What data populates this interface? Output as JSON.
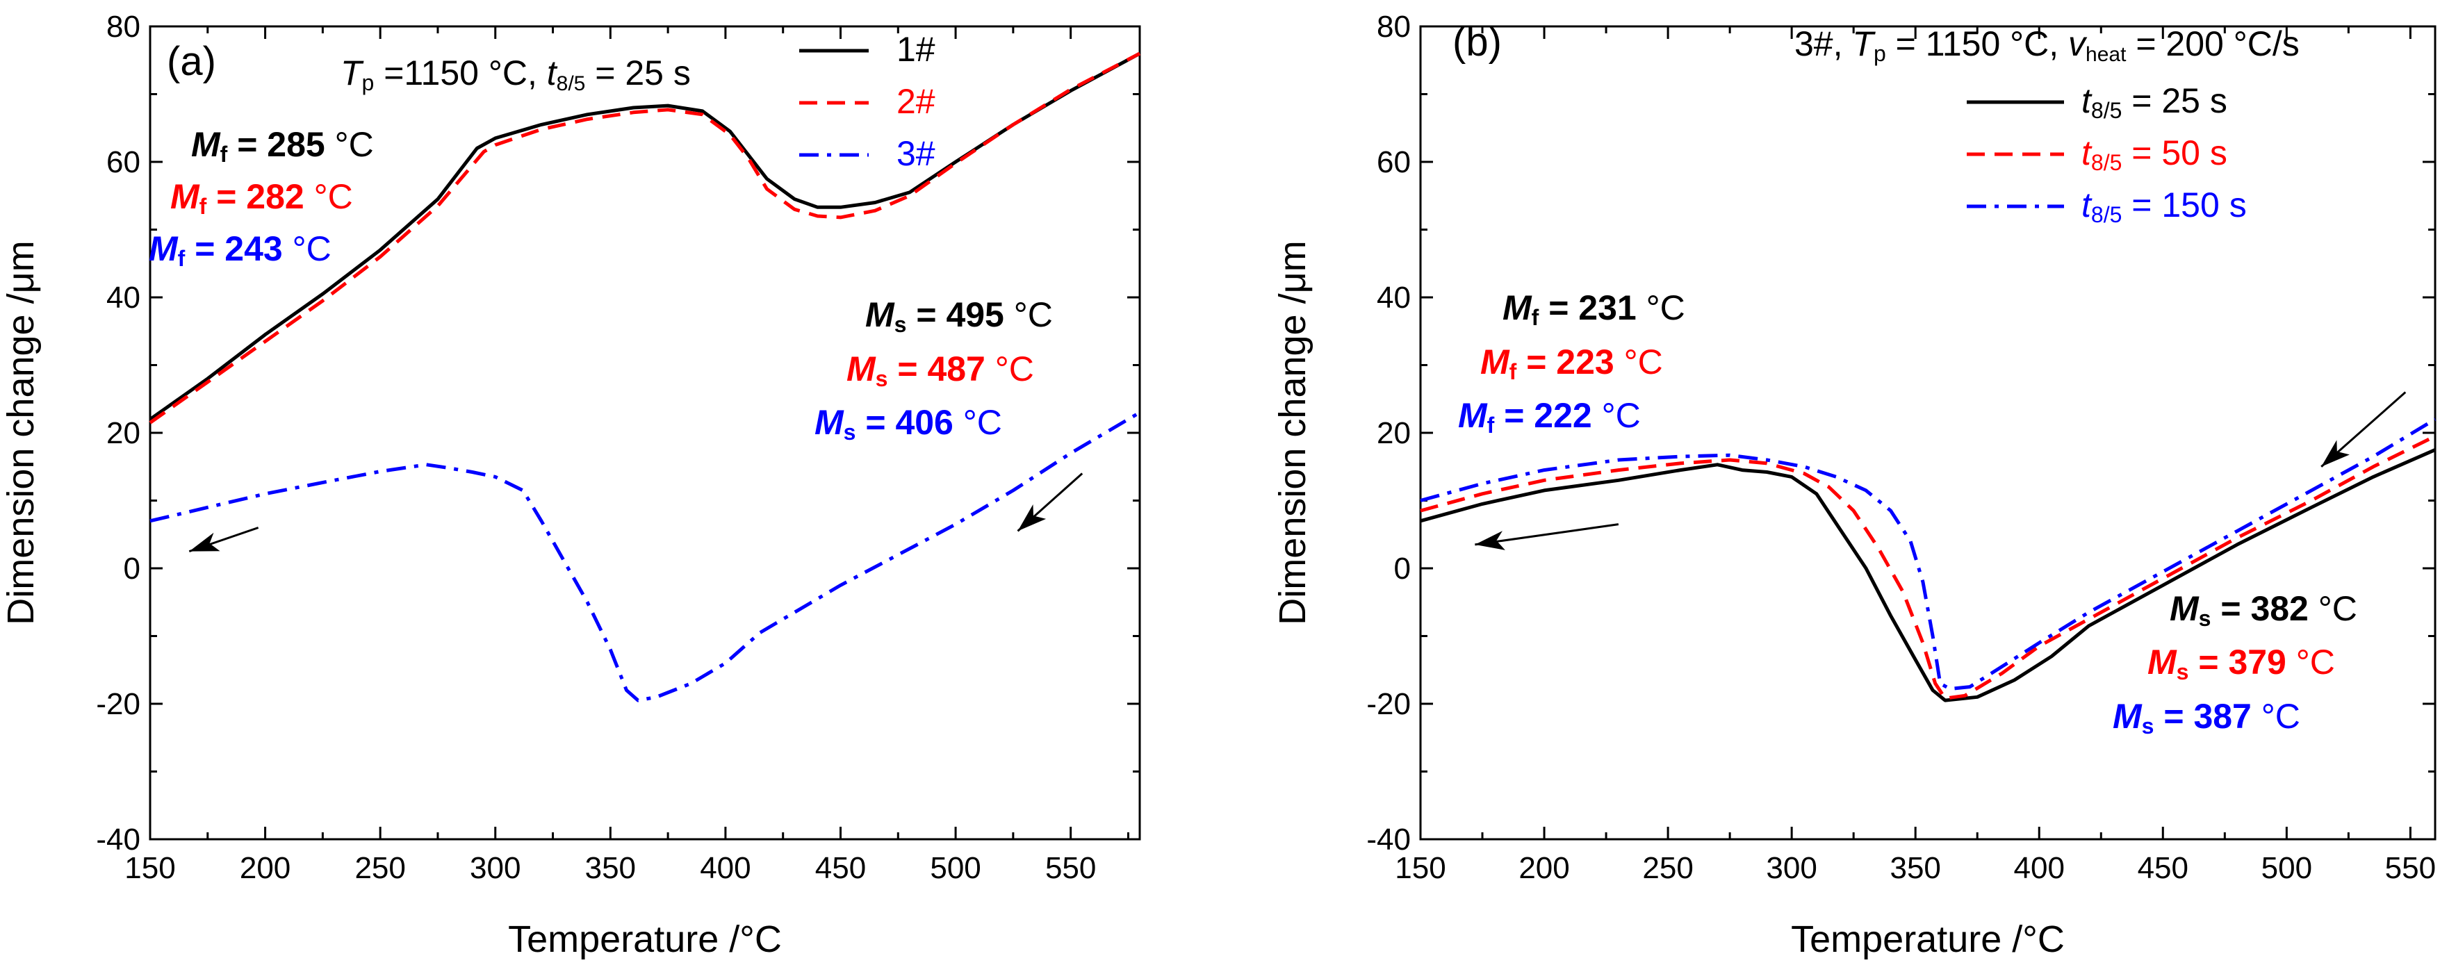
{
  "chart_data": [
    {
      "type": "line",
      "panel_label": "(a)",
      "xlabel": "Temperature /°C",
      "ylabel": "Dimension change /μm",
      "xlim": [
        150,
        580
      ],
      "ylim": [
        -40,
        80
      ],
      "xticks": [
        150,
        200,
        250,
        300,
        350,
        400,
        450,
        500,
        550
      ],
      "yticks": [
        -40,
        -20,
        0,
        20,
        40,
        60,
        80
      ],
      "grid": false,
      "legend_position": "top-right",
      "condition_text": {
        "t_symbol": "T",
        "t_sub": "p",
        "t_value": " =1150 °C, ",
        "t85_symbol": "t",
        "t85_sub": "8/5",
        "t85_value": " = 25 s"
      },
      "series": [
        {
          "name": "1#",
          "color": "#000000",
          "dash": "solid",
          "points": [
            [
              150,
              22
            ],
            [
              175,
              28
            ],
            [
              200,
              34.5
            ],
            [
              225,
              40.5
            ],
            [
              250,
              47
            ],
            [
              275,
              54.5
            ],
            [
              292,
              62
            ],
            [
              300,
              63.5
            ],
            [
              320,
              65.5
            ],
            [
              340,
              67
            ],
            [
              360,
              68
            ],
            [
              375,
              68.3
            ],
            [
              390,
              67.5
            ],
            [
              402,
              64.5
            ],
            [
              410,
              61
            ],
            [
              418,
              57.5
            ],
            [
              430,
              54.5
            ],
            [
              440,
              53.3
            ],
            [
              450,
              53.3
            ],
            [
              465,
              54
            ],
            [
              480,
              55.5
            ],
            [
              500,
              60
            ],
            [
              525,
              65.5
            ],
            [
              550,
              70.5
            ],
            [
              580,
              76
            ]
          ]
        },
        {
          "name": "2#",
          "color": "#ff0000",
          "dash": "dashed",
          "points": [
            [
              150,
              21.5
            ],
            [
              175,
              27.5
            ],
            [
              200,
              33.5
            ],
            [
              225,
              39.5
            ],
            [
              250,
              46
            ],
            [
              275,
              53.5
            ],
            [
              295,
              61.5
            ],
            [
              300,
              62.5
            ],
            [
              320,
              64.8
            ],
            [
              340,
              66.3
            ],
            [
              360,
              67.3
            ],
            [
              375,
              67.7
            ],
            [
              390,
              67
            ],
            [
              402,
              64
            ],
            [
              410,
              60.5
            ],
            [
              418,
              56
            ],
            [
              430,
              53
            ],
            [
              440,
              52
            ],
            [
              450,
              51.8
            ],
            [
              465,
              52.8
            ],
            [
              480,
              55
            ],
            [
              500,
              59.8
            ],
            [
              525,
              65.5
            ],
            [
              550,
              70.7
            ],
            [
              580,
              76
            ]
          ]
        },
        {
          "name": "3#",
          "color": "#0000ff",
          "dash": "dashdot",
          "points": [
            [
              150,
              7
            ],
            [
              175,
              9
            ],
            [
              200,
              11
            ],
            [
              230,
              13
            ],
            [
              250,
              14.3
            ],
            [
              270,
              15.3
            ],
            [
              280,
              14.8
            ],
            [
              290,
              14.2
            ],
            [
              300,
              13.5
            ],
            [
              312,
              11.5
            ],
            [
              320,
              7
            ],
            [
              330,
              1
            ],
            [
              340,
              -5
            ],
            [
              350,
              -12
            ],
            [
              357,
              -18
            ],
            [
              362,
              -19.5
            ],
            [
              370,
              -19
            ],
            [
              385,
              -17
            ],
            [
              400,
              -14
            ],
            [
              415,
              -9.5
            ],
            [
              425,
              -7.5
            ],
            [
              450,
              -2.5
            ],
            [
              475,
              2
            ],
            [
              500,
              6.5
            ],
            [
              525,
              11.5
            ],
            [
              550,
              17
            ],
            [
              580,
              23
            ]
          ]
        }
      ],
      "annotations": [
        {
          "symbol": "M",
          "sub": "f",
          "value": "285",
          "unit": " °C",
          "color": "#000000"
        },
        {
          "symbol": "M",
          "sub": "f",
          "value": "282",
          "unit": " °C",
          "color": "#ff0000"
        },
        {
          "symbol": "M",
          "sub": "f",
          "value": "243",
          "unit": " °C",
          "color": "#0000ff"
        },
        {
          "symbol": "M",
          "sub": "s",
          "value": "495",
          "unit": " °C",
          "color": "#000000"
        },
        {
          "symbol": "M",
          "sub": "s",
          "value": "487",
          "unit": " °C",
          "color": "#ff0000"
        },
        {
          "symbol": "M",
          "sub": "s",
          "value": "406",
          "unit": " °C",
          "color": "#0000ff"
        }
      ],
      "arrows": [
        {
          "from": [
            197,
            6
          ],
          "to": [
            167,
            2.5
          ]
        },
        {
          "from": [
            555,
            14
          ],
          "to": [
            527,
            5.5
          ]
        }
      ]
    },
    {
      "type": "line",
      "panel_label": "(b)",
      "xlabel": "Temperature /°C",
      "ylabel": "Dimension change /μm",
      "xlim": [
        150,
        560
      ],
      "ylim": [
        -40,
        80
      ],
      "xticks": [
        150,
        200,
        250,
        300,
        350,
        400,
        450,
        500,
        550
      ],
      "yticks": [
        -40,
        -20,
        0,
        20,
        40,
        60,
        80
      ],
      "grid": false,
      "legend_position": "top-right",
      "condition_text": {
        "prefix": "3#, ",
        "t_symbol": "T",
        "t_sub": "p",
        "t_value": " = 1150 °C, ",
        "v_symbol": "v",
        "v_sub": "heat",
        "v_value": " = 200 °C/s"
      },
      "series": [
        {
          "name": "t8/5 = 25 s",
          "name_symbol": "t",
          "name_sub": "8/5",
          "name_value": " = 25 s",
          "color": "#000000",
          "dash": "solid",
          "points": [
            [
              150,
              7
            ],
            [
              175,
              9.5
            ],
            [
              200,
              11.5
            ],
            [
              230,
              13
            ],
            [
              255,
              14.5
            ],
            [
              270,
              15.3
            ],
            [
              280,
              14.5
            ],
            [
              290,
              14.2
            ],
            [
              300,
              13.5
            ],
            [
              310,
              11
            ],
            [
              320,
              5.5
            ],
            [
              330,
              0
            ],
            [
              340,
              -7
            ],
            [
              350,
              -13.5
            ],
            [
              357,
              -18
            ],
            [
              362,
              -19.5
            ],
            [
              375,
              -19
            ],
            [
              390,
              -16.5
            ],
            [
              405,
              -13
            ],
            [
              420,
              -8.5
            ],
            [
              450,
              -2.5
            ],
            [
              480,
              3.5
            ],
            [
              510,
              9
            ],
            [
              535,
              13.5
            ],
            [
              560,
              17.5
            ]
          ]
        },
        {
          "name": "t8/5 = 50 s",
          "name_symbol": "t",
          "name_sub": "8/5",
          "name_value": " = 50 s",
          "color": "#ff0000",
          "dash": "dashed",
          "points": [
            [
              150,
              8.5
            ],
            [
              175,
              11
            ],
            [
              200,
              13
            ],
            [
              230,
              14.5
            ],
            [
              255,
              15.5
            ],
            [
              275,
              16
            ],
            [
              290,
              15.5
            ],
            [
              305,
              14
            ],
            [
              315,
              12
            ],
            [
              325,
              8.5
            ],
            [
              335,
              3
            ],
            [
              345,
              -3.5
            ],
            [
              353,
              -11
            ],
            [
              358,
              -17
            ],
            [
              362,
              -19.2
            ],
            [
              370,
              -18.8
            ],
            [
              385,
              -15.5
            ],
            [
              400,
              -11.5
            ],
            [
              420,
              -7.5
            ],
            [
              450,
              -1.5
            ],
            [
              480,
              4.5
            ],
            [
              510,
              10
            ],
            [
              535,
              15
            ],
            [
              560,
              19.5
            ]
          ]
        },
        {
          "name": "t8/5 = 150 s",
          "name_symbol": "t",
          "name_sub": "8/5",
          "name_value": " = 150 s",
          "color": "#0000ff",
          "dash": "dashdot",
          "points": [
            [
              150,
              10
            ],
            [
              175,
              12.5
            ],
            [
              200,
              14.5
            ],
            [
              230,
              16
            ],
            [
              255,
              16.5
            ],
            [
              275,
              16.7
            ],
            [
              290,
              16
            ],
            [
              305,
              15
            ],
            [
              318,
              13.5
            ],
            [
              330,
              11.5
            ],
            [
              340,
              8.5
            ],
            [
              348,
              4
            ],
            [
              353,
              -2
            ],
            [
              357,
              -10
            ],
            [
              360,
              -17
            ],
            [
              364,
              -17.8
            ],
            [
              372,
              -17.5
            ],
            [
              385,
              -14.5
            ],
            [
              400,
              -11
            ],
            [
              420,
              -6.5
            ],
            [
              450,
              -0.5
            ],
            [
              480,
              5.5
            ],
            [
              510,
              11.5
            ],
            [
              535,
              16.5
            ],
            [
              560,
              22
            ]
          ]
        }
      ],
      "annotations": [
        {
          "symbol": "M",
          "sub": "f",
          "value": "231",
          "unit": " °C",
          "color": "#000000"
        },
        {
          "symbol": "M",
          "sub": "f",
          "value": "223",
          "unit": " °C",
          "color": "#ff0000"
        },
        {
          "symbol": "M",
          "sub": "f",
          "value": "222",
          "unit": " °C",
          "color": "#0000ff"
        },
        {
          "symbol": "M",
          "sub": "s",
          "value": "382",
          "unit": " °C",
          "color": "#000000"
        },
        {
          "symbol": "M",
          "sub": "s",
          "value": "379",
          "unit": " °C",
          "color": "#ff0000"
        },
        {
          "symbol": "M",
          "sub": "s",
          "value": "387",
          "unit": " °C",
          "color": "#0000ff"
        }
      ],
      "arrows": [
        {
          "from": [
            230,
            6.5
          ],
          "to": [
            172,
            3.5
          ]
        },
        {
          "from": [
            548,
            26
          ],
          "to": [
            514,
            15
          ]
        }
      ]
    }
  ]
}
